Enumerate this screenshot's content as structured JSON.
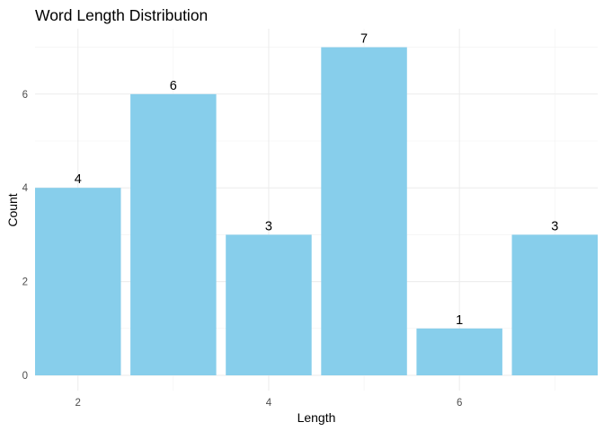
{
  "chart_data": {
    "type": "bar",
    "title": "Word Length Distribution",
    "xlabel": "Length",
    "ylabel": "Count",
    "x": [
      2,
      3,
      4,
      5,
      6,
      7
    ],
    "values": [
      4,
      6,
      3,
      7,
      1,
      3
    ],
    "data_labels": [
      "4",
      "6",
      "3",
      "7",
      "1",
      "3"
    ],
    "x_ticks": [
      2,
      4,
      6
    ],
    "x_tick_labels": [
      "2",
      "4",
      "6"
    ],
    "y_ticks": [
      0,
      2,
      4,
      6
    ],
    "y_tick_labels": [
      "0",
      "2",
      "4",
      "6"
    ],
    "xlim": [
      1.55,
      7.45
    ],
    "ylim": [
      0,
      7.35
    ],
    "bar_color": "#87CEEB",
    "grid": true,
    "legend": "none"
  }
}
